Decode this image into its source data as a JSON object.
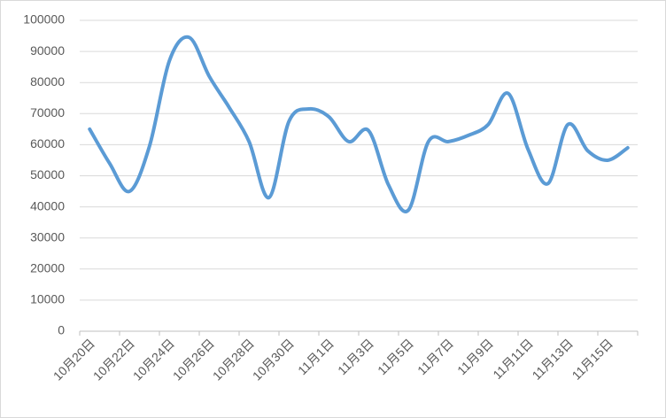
{
  "chart_data": {
    "type": "line",
    "categories": [
      "10月20日",
      null,
      "10月22日",
      null,
      "10月24日",
      null,
      "10月26日",
      null,
      "10月28日",
      null,
      "10月30日",
      null,
      "11月1日",
      null,
      "11月3日",
      null,
      "11月5日",
      null,
      "11月7日",
      null,
      "11月9日",
      null,
      "11月11日",
      null,
      "11月13日",
      null,
      "11月15日",
      null
    ],
    "values": [
      65000,
      54000,
      45000,
      59500,
      87000,
      94500,
      82000,
      72000,
      61000,
      43000,
      67500,
      71500,
      69000,
      61000,
      64500,
      47000,
      39000,
      61000,
      61000,
      63000,
      66500,
      76500,
      58500,
      47500,
      66500,
      58000,
      55000,
      59000
    ],
    "color": "#5b9bd5",
    "smooth": true,
    "grid": true,
    "ylim": [
      0,
      100000
    ],
    "yticks": [
      0,
      10000,
      20000,
      30000,
      40000,
      50000,
      60000,
      70000,
      80000,
      90000,
      100000
    ]
  }
}
